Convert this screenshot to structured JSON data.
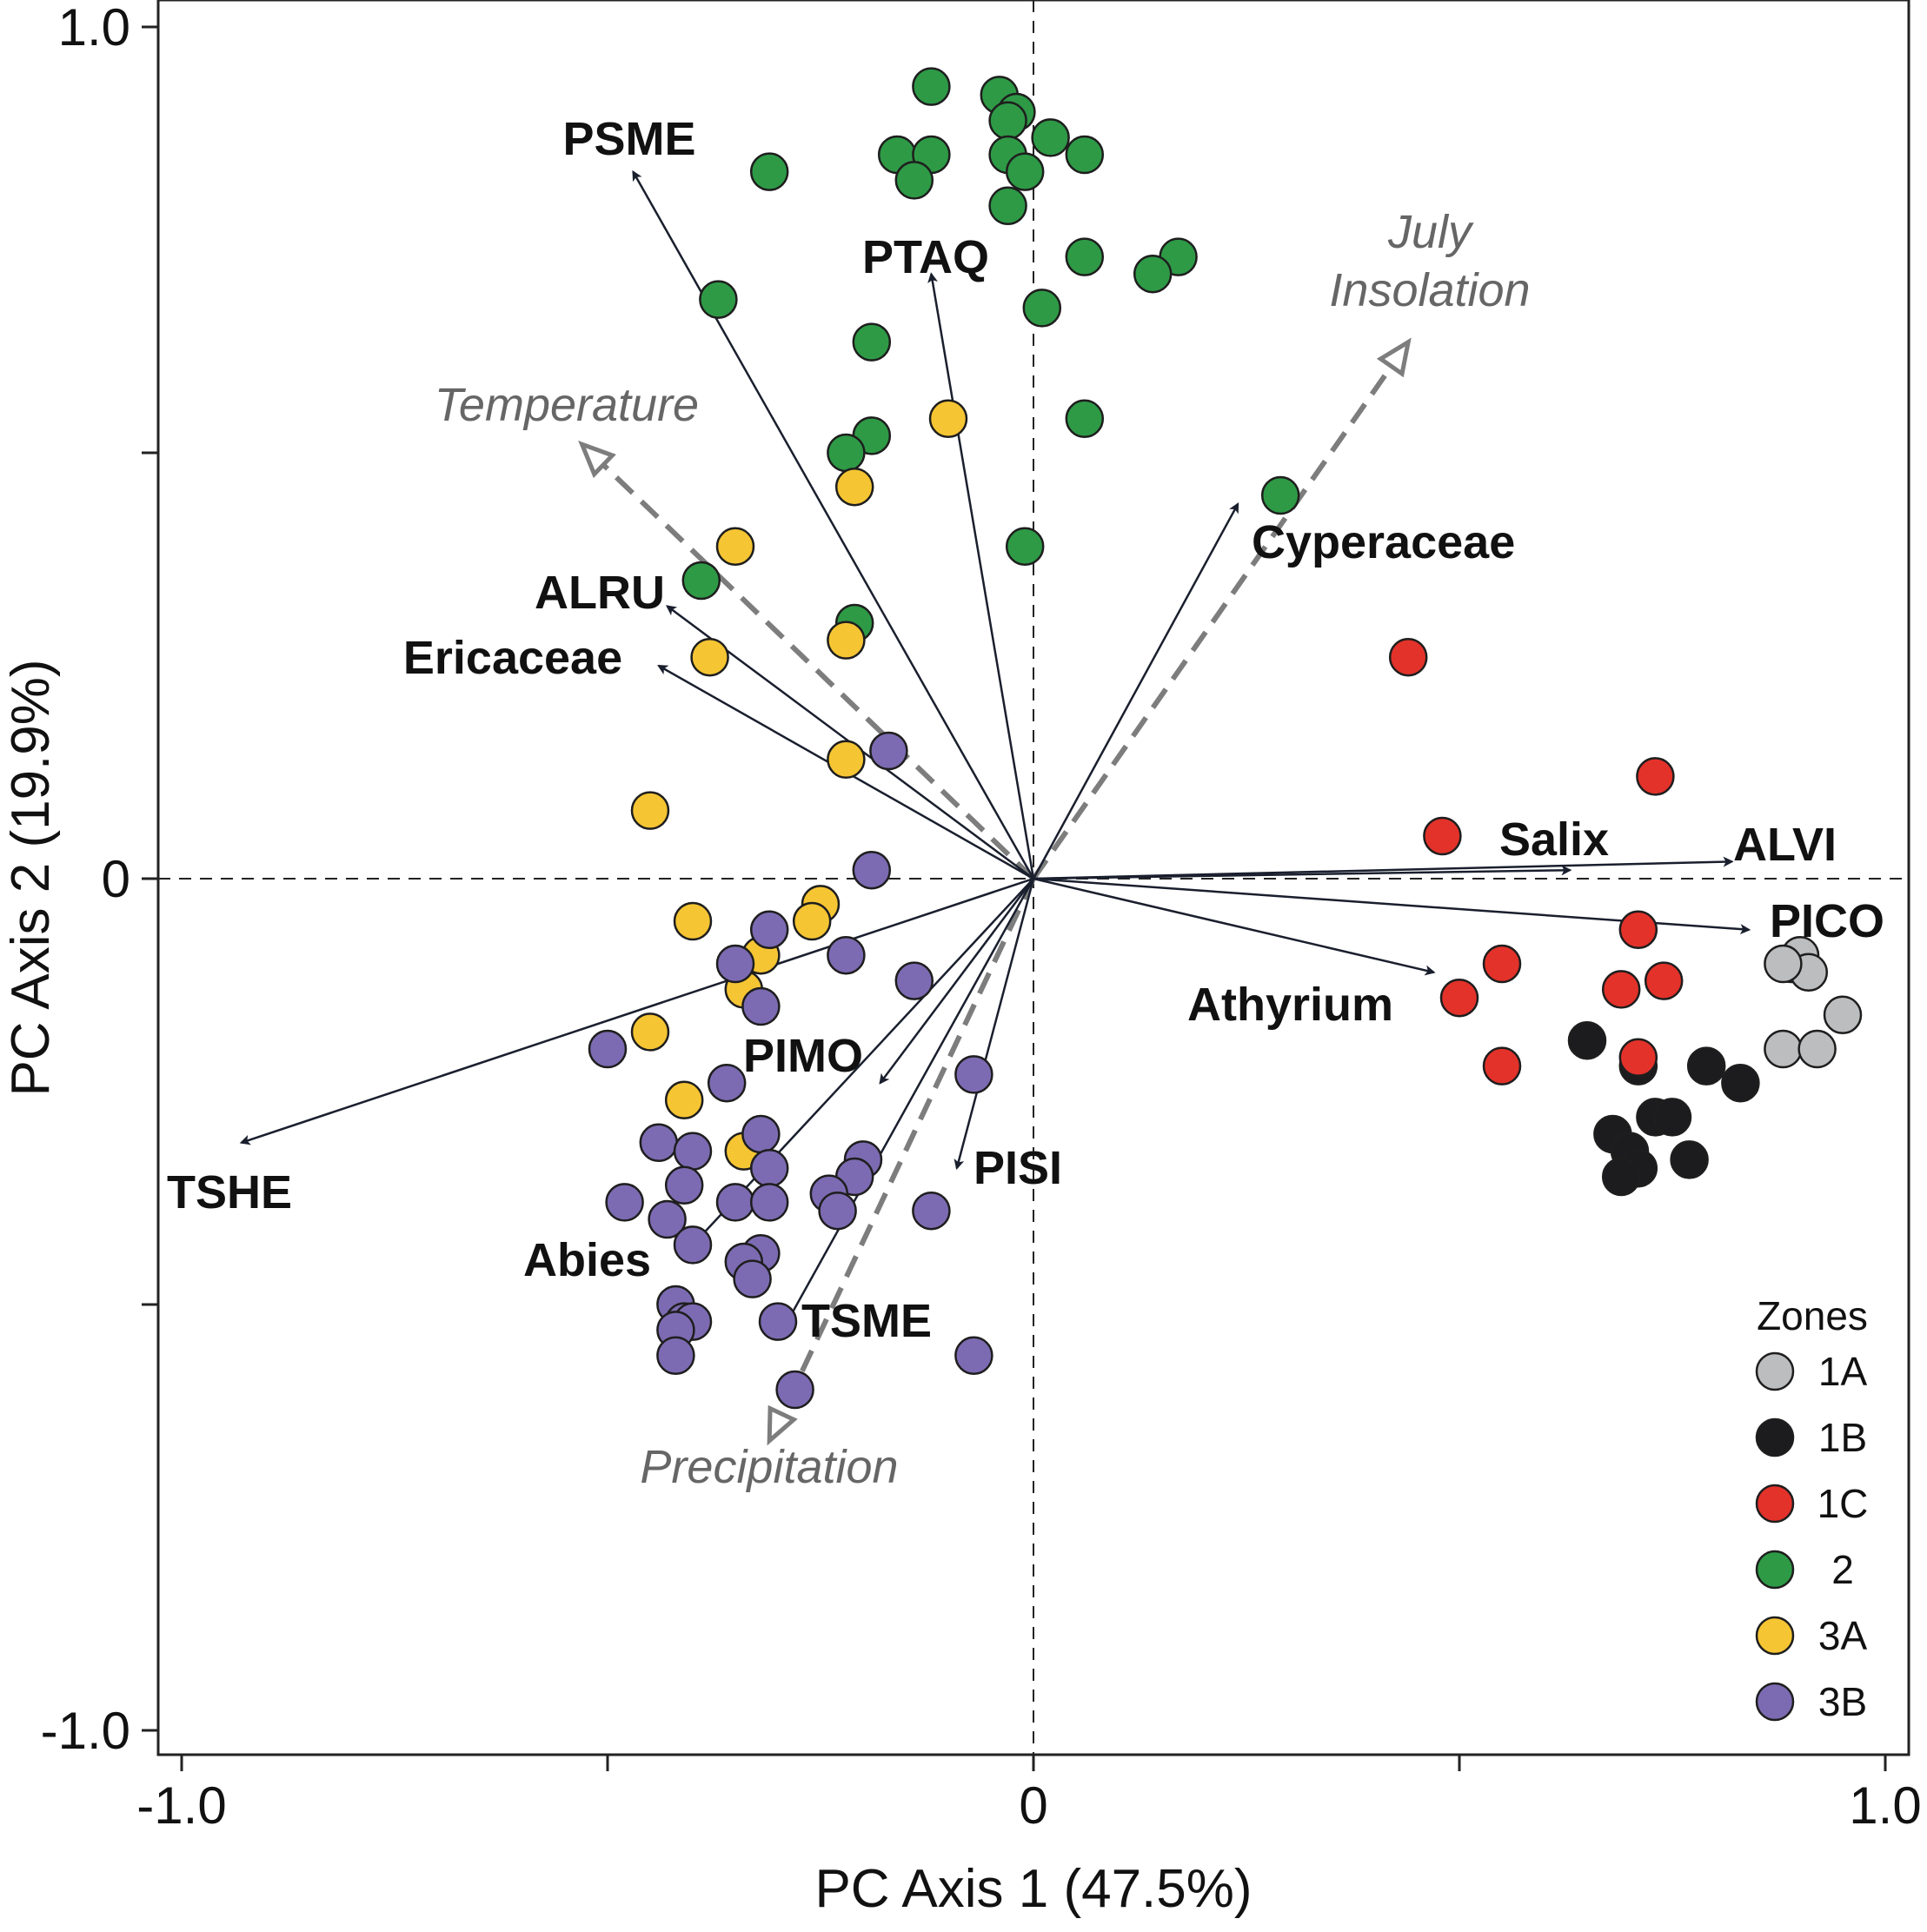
{
  "chart_data": {
    "type": "scatter",
    "title": "",
    "xlabel": "PC Axis 1 (47.5%)",
    "ylabel": "PC Axis 2 (19.9%)",
    "xlim": [
      -1.03,
      1.03
    ],
    "ylim": [
      -1.03,
      1.03
    ],
    "x_ticks": [
      -1.0,
      -0.5,
      0,
      0.5,
      1.0
    ],
    "y_ticks": [
      -1.0,
      -0.5,
      0,
      0.5,
      1.0
    ],
    "x_tick_labels": [
      "-1.0",
      "",
      "0",
      "",
      "1.0"
    ],
    "y_tick_labels": [
      "-1.0",
      "",
      "0",
      "",
      "1.0"
    ],
    "reference_lines": {
      "x": 0,
      "y": 0,
      "style": "dashed"
    },
    "legend": {
      "title": "Zones",
      "location": "bottom-right"
    },
    "zones": [
      {
        "name": "1A",
        "color": "#bcbdbe"
      },
      {
        "name": "1B",
        "color": "#1c1c1e"
      },
      {
        "name": "1C",
        "color": "#e3322a"
      },
      {
        "name": "2",
        "color": "#2e9a46"
      },
      {
        "name": "3A",
        "color": "#f6c533"
      },
      {
        "name": "3B",
        "color": "#7c6bb2"
      }
    ],
    "points": [
      {
        "zone": "1A",
        "x": 0.89,
        "y": -0.1
      },
      {
        "zone": "1A",
        "x": 0.9,
        "y": -0.09
      },
      {
        "zone": "1A",
        "x": 0.91,
        "y": -0.11
      },
      {
        "zone": "1A",
        "x": 0.88,
        "y": -0.1
      },
      {
        "zone": "1A",
        "x": 0.95,
        "y": -0.16
      },
      {
        "zone": "1A",
        "x": 0.88,
        "y": -0.2
      },
      {
        "zone": "1A",
        "x": 0.92,
        "y": -0.2
      },
      {
        "zone": "1B",
        "x": 0.65,
        "y": -0.19
      },
      {
        "zone": "1B",
        "x": 0.71,
        "y": -0.22
      },
      {
        "zone": "1B",
        "x": 0.79,
        "y": -0.22
      },
      {
        "zone": "1B",
        "x": 0.83,
        "y": -0.24
      },
      {
        "zone": "1B",
        "x": 0.73,
        "y": -0.28
      },
      {
        "zone": "1B",
        "x": 0.75,
        "y": -0.28
      },
      {
        "zone": "1B",
        "x": 0.68,
        "y": -0.3
      },
      {
        "zone": "1B",
        "x": 0.7,
        "y": -0.32
      },
      {
        "zone": "1B",
        "x": 0.71,
        "y": -0.34
      },
      {
        "zone": "1B",
        "x": 0.69,
        "y": -0.35
      },
      {
        "zone": "1B",
        "x": 0.77,
        "y": -0.33
      },
      {
        "zone": "1C",
        "x": 0.44,
        "y": 0.26
      },
      {
        "zone": "1C",
        "x": 0.73,
        "y": 0.12
      },
      {
        "zone": "1C",
        "x": 0.48,
        "y": 0.05
      },
      {
        "zone": "1C",
        "x": 0.71,
        "y": -0.06
      },
      {
        "zone": "1C",
        "x": 0.55,
        "y": -0.1
      },
      {
        "zone": "1C",
        "x": 0.69,
        "y": -0.13
      },
      {
        "zone": "1C",
        "x": 0.74,
        "y": -0.12
      },
      {
        "zone": "1C",
        "x": 0.5,
        "y": -0.14
      },
      {
        "zone": "1C",
        "x": 0.55,
        "y": -0.22
      },
      {
        "zone": "1C",
        "x": 0.71,
        "y": -0.21
      },
      {
        "zone": "2",
        "x": -0.12,
        "y": 0.93
      },
      {
        "zone": "2",
        "x": -0.04,
        "y": 0.92
      },
      {
        "zone": "2",
        "x": -0.02,
        "y": 0.9
      },
      {
        "zone": "2",
        "x": -0.03,
        "y": 0.89
      },
      {
        "zone": "2",
        "x": 0.02,
        "y": 0.87
      },
      {
        "zone": "2",
        "x": 0.06,
        "y": 0.85
      },
      {
        "zone": "2",
        "x": -0.16,
        "y": 0.85
      },
      {
        "zone": "2",
        "x": -0.12,
        "y": 0.85
      },
      {
        "zone": "2",
        "x": -0.03,
        "y": 0.85
      },
      {
        "zone": "2",
        "x": -0.01,
        "y": 0.83
      },
      {
        "zone": "2",
        "x": -0.31,
        "y": 0.83
      },
      {
        "zone": "2",
        "x": -0.14,
        "y": 0.82
      },
      {
        "zone": "2",
        "x": -0.03,
        "y": 0.79
      },
      {
        "zone": "2",
        "x": 0.06,
        "y": 0.73
      },
      {
        "zone": "2",
        "x": 0.17,
        "y": 0.73
      },
      {
        "zone": "2",
        "x": 0.14,
        "y": 0.71
      },
      {
        "zone": "2",
        "x": -0.37,
        "y": 0.68
      },
      {
        "zone": "2",
        "x": 0.01,
        "y": 0.67
      },
      {
        "zone": "2",
        "x": -0.19,
        "y": 0.63
      },
      {
        "zone": "2",
        "x": -0.19,
        "y": 0.52
      },
      {
        "zone": "2",
        "x": 0.06,
        "y": 0.54
      },
      {
        "zone": "2",
        "x": -0.22,
        "y": 0.5
      },
      {
        "zone": "2",
        "x": 0.29,
        "y": 0.45
      },
      {
        "zone": "2",
        "x": -0.01,
        "y": 0.39
      },
      {
        "zone": "2",
        "x": -0.39,
        "y": 0.35
      },
      {
        "zone": "2",
        "x": -0.21,
        "y": 0.3
      },
      {
        "zone": "3A",
        "x": -0.1,
        "y": 0.54
      },
      {
        "zone": "3A",
        "x": -0.21,
        "y": 0.46
      },
      {
        "zone": "3A",
        "x": -0.35,
        "y": 0.39
      },
      {
        "zone": "3A",
        "x": -0.22,
        "y": 0.28
      },
      {
        "zone": "3A",
        "x": -0.38,
        "y": 0.26
      },
      {
        "zone": "3A",
        "x": -0.22,
        "y": 0.14
      },
      {
        "zone": "3A",
        "x": -0.45,
        "y": 0.08
      },
      {
        "zone": "3A",
        "x": -0.25,
        "y": -0.03
      },
      {
        "zone": "3A",
        "x": -0.26,
        "y": -0.05
      },
      {
        "zone": "3A",
        "x": -0.4,
        "y": -0.05
      },
      {
        "zone": "3A",
        "x": -0.32,
        "y": -0.09
      },
      {
        "zone": "3A",
        "x": -0.34,
        "y": -0.13
      },
      {
        "zone": "3A",
        "x": -0.45,
        "y": -0.18
      },
      {
        "zone": "3A",
        "x": -0.41,
        "y": -0.26
      },
      {
        "zone": "3A",
        "x": -0.34,
        "y": -0.32
      },
      {
        "zone": "3B",
        "x": -0.17,
        "y": 0.15
      },
      {
        "zone": "3B",
        "x": -0.19,
        "y": 0.01
      },
      {
        "zone": "3B",
        "x": -0.31,
        "y": -0.06
      },
      {
        "zone": "3B",
        "x": -0.22,
        "y": -0.09
      },
      {
        "zone": "3B",
        "x": -0.35,
        "y": -0.1
      },
      {
        "zone": "3B",
        "x": -0.14,
        "y": -0.12
      },
      {
        "zone": "3B",
        "x": -0.32,
        "y": -0.15
      },
      {
        "zone": "3B",
        "x": -0.5,
        "y": -0.2
      },
      {
        "zone": "3B",
        "x": -0.36,
        "y": -0.24
      },
      {
        "zone": "3B",
        "x": -0.07,
        "y": -0.23
      },
      {
        "zone": "3B",
        "x": -0.32,
        "y": -0.3
      },
      {
        "zone": "3B",
        "x": -0.44,
        "y": -0.31
      },
      {
        "zone": "3B",
        "x": -0.4,
        "y": -0.32
      },
      {
        "zone": "3B",
        "x": -0.31,
        "y": -0.34
      },
      {
        "zone": "3B",
        "x": -0.2,
        "y": -0.33
      },
      {
        "zone": "3B",
        "x": -0.21,
        "y": -0.35
      },
      {
        "zone": "3B",
        "x": -0.41,
        "y": -0.36
      },
      {
        "zone": "3B",
        "x": -0.24,
        "y": -0.37
      },
      {
        "zone": "3B",
        "x": -0.35,
        "y": -0.38
      },
      {
        "zone": "3B",
        "x": -0.31,
        "y": -0.38
      },
      {
        "zone": "3B",
        "x": -0.48,
        "y": -0.38
      },
      {
        "zone": "3B",
        "x": -0.23,
        "y": -0.39
      },
      {
        "zone": "3B",
        "x": -0.12,
        "y": -0.39
      },
      {
        "zone": "3B",
        "x": -0.43,
        "y": -0.4
      },
      {
        "zone": "3B",
        "x": -0.4,
        "y": -0.43
      },
      {
        "zone": "3B",
        "x": -0.32,
        "y": -0.44
      },
      {
        "zone": "3B",
        "x": -0.34,
        "y": -0.45
      },
      {
        "zone": "3B",
        "x": -0.33,
        "y": -0.47
      },
      {
        "zone": "3B",
        "x": -0.42,
        "y": -0.5
      },
      {
        "zone": "3B",
        "x": -0.41,
        "y": -0.52
      },
      {
        "zone": "3B",
        "x": -0.4,
        "y": -0.52
      },
      {
        "zone": "3B",
        "x": -0.42,
        "y": -0.53
      },
      {
        "zone": "3B",
        "x": -0.3,
        "y": -0.52
      },
      {
        "zone": "3B",
        "x": -0.42,
        "y": -0.56
      },
      {
        "zone": "3B",
        "x": -0.07,
        "y": -0.56
      },
      {
        "zone": "3B",
        "x": -0.28,
        "y": -0.6
      }
    ],
    "species_vectors": [
      {
        "name": "PSME",
        "x": -0.47,
        "y": 0.83
      },
      {
        "name": "PTAQ",
        "x": -0.12,
        "y": 0.71
      },
      {
        "name": "Cyperaceae",
        "x": 0.24,
        "y": 0.44
      },
      {
        "name": "ALRU",
        "x": -0.43,
        "y": 0.32
      },
      {
        "name": "Ericaceae",
        "x": -0.44,
        "y": 0.25
      },
      {
        "name": "Salix",
        "x": 0.63,
        "y": 0.01
      },
      {
        "name": "ALVI",
        "x": 0.82,
        "y": 0.02
      },
      {
        "name": "PICO",
        "x": 0.84,
        "y": -0.06
      },
      {
        "name": "Athyrium",
        "x": 0.47,
        "y": -0.11
      },
      {
        "name": "PIMO",
        "x": -0.18,
        "y": -0.24
      },
      {
        "name": "PISI",
        "x": -0.09,
        "y": -0.34
      },
      {
        "name": "TSHE",
        "x": -0.93,
        "y": -0.31
      },
      {
        "name": "Abies",
        "x": -0.4,
        "y": -0.43
      },
      {
        "name": "TSME",
        "x": -0.3,
        "y": -0.54
      }
    ],
    "environment_vectors": [
      {
        "name": "July Insolation",
        "label_lines": [
          "July",
          "Insolation"
        ],
        "x": 0.44,
        "y": 0.63
      },
      {
        "name": "Temperature",
        "label_lines": [
          "Temperature"
        ],
        "x": -0.53,
        "y": 0.51
      },
      {
        "name": "Precipitation",
        "label_lines": [
          "Precipitation"
        ],
        "x": -0.31,
        "y": -0.66
      }
    ]
  }
}
